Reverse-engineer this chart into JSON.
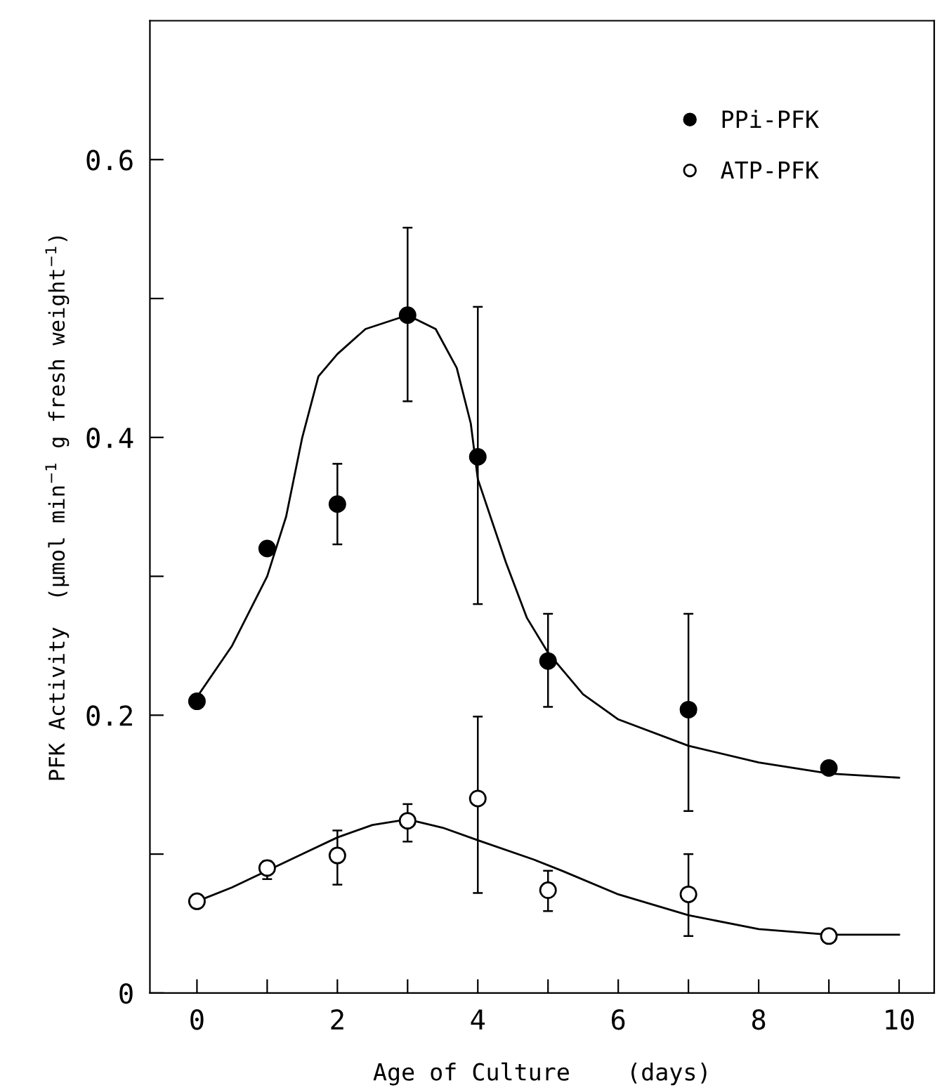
{
  "chart_data": {
    "type": "scatter",
    "xlabel": "Age of Culture    (days)",
    "ylabel": "PFK Activity  (µmol min$^{−1}$ g fresh weight$^{−1}$)",
    "xlim": [
      -0.67,
      10.5
    ],
    "ylim": [
      0,
      0.7
    ],
    "xticks": [
      0,
      {
        "value": 1,
        "label": null
      },
      2,
      {
        "value": 3,
        "label": null
      },
      4,
      {
        "value": 5,
        "label": null
      },
      6,
      {
        "value": 7,
        "label": null
      },
      8,
      {
        "value": 9,
        "label": null
      },
      10
    ],
    "yticks": [
      0,
      {
        "value": 0.1,
        "label": null
      },
      0.2,
      {
        "value": 0.3,
        "label": null
      },
      0.4,
      {
        "value": 0.5,
        "label": null
      },
      0.6
    ],
    "grid": false,
    "legend": "top right",
    "marker": "circle",
    "series": [
      {
        "name": "PPi-PFK",
        "color": "#000000",
        "x": [
          0,
          1,
          2,
          3,
          4,
          5,
          7,
          9
        ],
        "values": [
          0.21,
          0.32,
          0.352,
          0.488,
          0.386,
          0.239,
          0.204,
          0.162
        ],
        "errors": [
          null,
          null,
          [
            0.323,
            0.381
          ],
          [
            0.426,
            0.551
          ],
          [
            0.28,
            0.494
          ],
          [
            0.206,
            0.273
          ],
          [
            0.131,
            0.273
          ],
          null
        ]
      },
      {
        "name": "ATP-PFK",
        "color": "#ffffff",
        "x": [
          0,
          1,
          2,
          3,
          4,
          5,
          7,
          9
        ],
        "values": [
          0.066,
          0.09,
          0.099,
          0.124,
          0.14,
          0.074,
          0.071,
          0.041
        ],
        "errors": [
          null,
          [
            0.082,
            0.095
          ],
          [
            0.078,
            0.117
          ],
          [
            0.109,
            0.136
          ],
          [
            0.072,
            0.199
          ],
          [
            0.059,
            0.088
          ],
          [
            0.041,
            0.1
          ],
          null
        ]
      },
      {
        "type": "line",
        "color": "#000000",
        "marker": "none",
        "x": [
          0,
          0.5,
          1,
          1.27,
          1.5,
          1.73,
          2,
          2.4,
          3,
          3.4,
          3.7,
          3.9,
          4,
          4.2,
          4.4,
          4.7,
          5,
          5.5,
          6,
          7,
          8,
          9,
          10
        ],
        "values": [
          0.213,
          0.25,
          0.3,
          0.343,
          0.4,
          0.444,
          0.46,
          0.478,
          0.488,
          0.478,
          0.45,
          0.41,
          0.37,
          0.34,
          0.31,
          0.27,
          0.245,
          0.215,
          0.197,
          0.178,
          0.166,
          0.158,
          0.155
        ]
      },
      {
        "type": "line",
        "color": "#000000",
        "marker": "none",
        "x": [
          0,
          0.5,
          1,
          1.5,
          2,
          2.5,
          3,
          3.5,
          4,
          4.8,
          5.2,
          6,
          7,
          8,
          9,
          10
        ],
        "values": [
          0.066,
          0.076,
          0.088,
          0.1,
          0.112,
          0.121,
          0.125,
          0.119,
          0.11,
          0.096,
          0.088,
          0.071,
          0.056,
          0.046,
          0.042,
          0.042
        ]
      }
    ]
  }
}
